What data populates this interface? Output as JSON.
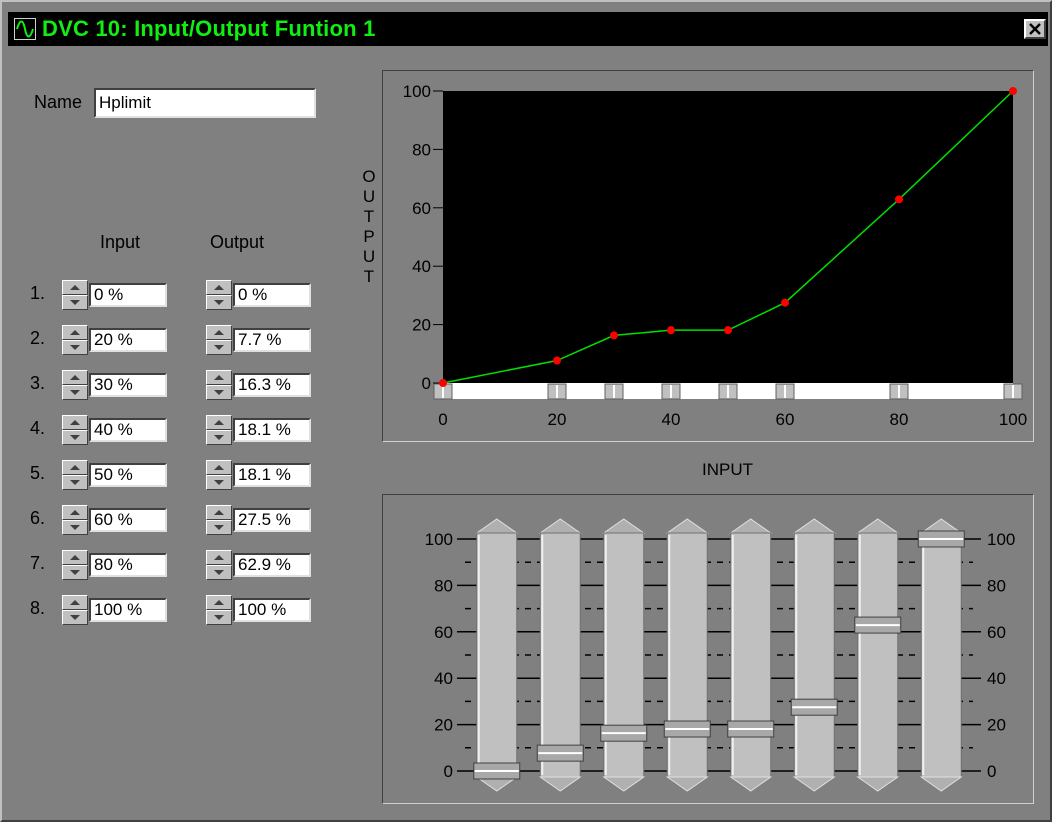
{
  "window": {
    "title": "DVC 10: Input/Output Funtion 1",
    "icon": "sine-wave-icon",
    "close_label": "×"
  },
  "name_label": "Name",
  "name_value": "Hplimit",
  "columns": {
    "input": "Input",
    "output": "Output"
  },
  "rows": [
    {
      "label": "1.",
      "input": "0 %",
      "output": "0 %"
    },
    {
      "label": "2.",
      "input": "20 %",
      "output": "7.7 %"
    },
    {
      "label": "3.",
      "input": "30 %",
      "output": "16.3 %"
    },
    {
      "label": "4.",
      "input": "40 %",
      "output": "18.1 %"
    },
    {
      "label": "5.",
      "input": "50 %",
      "output": "18.1 %"
    },
    {
      "label": "6.",
      "input": "60 %",
      "output": "27.5 %"
    },
    {
      "label": "7.",
      "input": "80 %",
      "output": "62.9 %"
    },
    {
      "label": "8.",
      "input": "100 %",
      "output": "100 %"
    }
  ],
  "chart": {
    "xlabel": "INPUT",
    "ylabel": "OUTPUT",
    "x_ticks": [
      "0",
      "20",
      "40",
      "60",
      "80",
      "100"
    ],
    "y_ticks": [
      "0",
      "20",
      "40",
      "60",
      "80",
      "100"
    ],
    "line_color": "#00e000",
    "point_color": "#ff0000",
    "background": "#000000"
  },
  "chart_data": {
    "type": "line",
    "x": [
      0,
      20,
      30,
      40,
      50,
      60,
      80,
      100
    ],
    "y": [
      0,
      7.7,
      16.3,
      18.1,
      18.1,
      27.5,
      62.9,
      100
    ],
    "xlabel": "INPUT",
    "ylabel": "OUTPUT",
    "xlim": [
      0,
      100
    ],
    "ylim": [
      0,
      100
    ],
    "grid": false
  },
  "sliders": {
    "ticks": [
      "0",
      "20",
      "40",
      "60",
      "80",
      "100"
    ],
    "values": [
      0,
      7.7,
      16.3,
      18.1,
      18.1,
      27.5,
      62.9,
      100
    ]
  }
}
